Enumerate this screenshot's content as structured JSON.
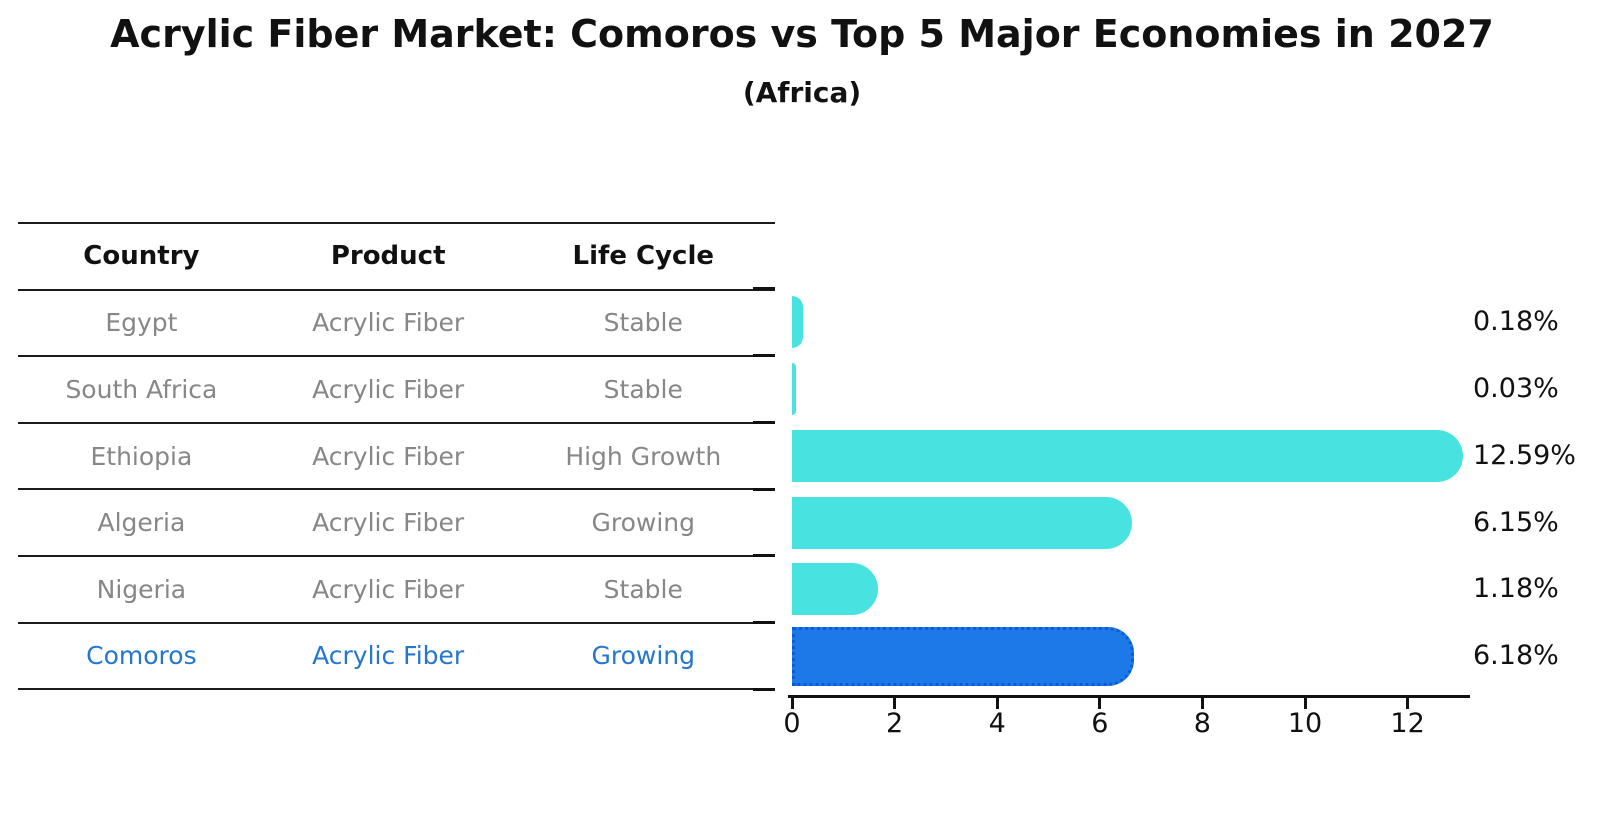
{
  "title": "Acrylic Fiber Market: Comoros vs Top 5 Major Economies in 2027",
  "subtitle": "(Africa)",
  "table": {
    "headers": [
      "Country",
      "Product",
      "Life Cycle"
    ],
    "rows": [
      {
        "country": "Egypt",
        "product": "Acrylic Fiber",
        "life_cycle": "Stable",
        "share": "0.18%"
      },
      {
        "country": "South Africa",
        "product": "Acrylic Fiber",
        "life_cycle": "Stable",
        "share": "0.03%"
      },
      {
        "country": "Ethiopia",
        "product": "Acrylic Fiber",
        "life_cycle": "High Growth",
        "share": "12.59%"
      },
      {
        "country": "Algeria",
        "product": "Acrylic Fiber",
        "life_cycle": "Growing",
        "share": "6.15%"
      },
      {
        "country": "Nigeria",
        "product": "Acrylic Fiber",
        "life_cycle": "Stable",
        "share": "1.18%"
      },
      {
        "country": "Comoros",
        "product": "Acrylic Fiber",
        "life_cycle": "Growing",
        "share": "6.18%"
      }
    ]
  },
  "chart_data": {
    "type": "bar",
    "orientation": "horizontal",
    "title": "Acrylic Fiber Market: Comoros vs Top 5 Major Economies in 2027",
    "subtitle": "(Africa)",
    "categories": [
      "Egypt",
      "South Africa",
      "Ethiopia",
      "Algeria",
      "Nigeria",
      "Comoros"
    ],
    "values": [
      0.18,
      0.03,
      12.59,
      6.15,
      1.18,
      6.18
    ],
    "value_labels": [
      "0.18%",
      "0.03%",
      "12.59%",
      "6.15%",
      "1.18%",
      "6.18%"
    ],
    "x_ticks": [
      0,
      2,
      4,
      6,
      8,
      10,
      12
    ],
    "xlim": [
      0,
      13.2
    ],
    "grid": false,
    "legend": "none",
    "highlight_index": 5,
    "colors": {
      "bar_default": "#48e3e0",
      "bar_highlight": "#1d78e8",
      "bar_highlight_border": "#0c5bd6",
      "highlight_text": "#2577ce",
      "table_text": "#878787",
      "text": "#111111"
    }
  }
}
